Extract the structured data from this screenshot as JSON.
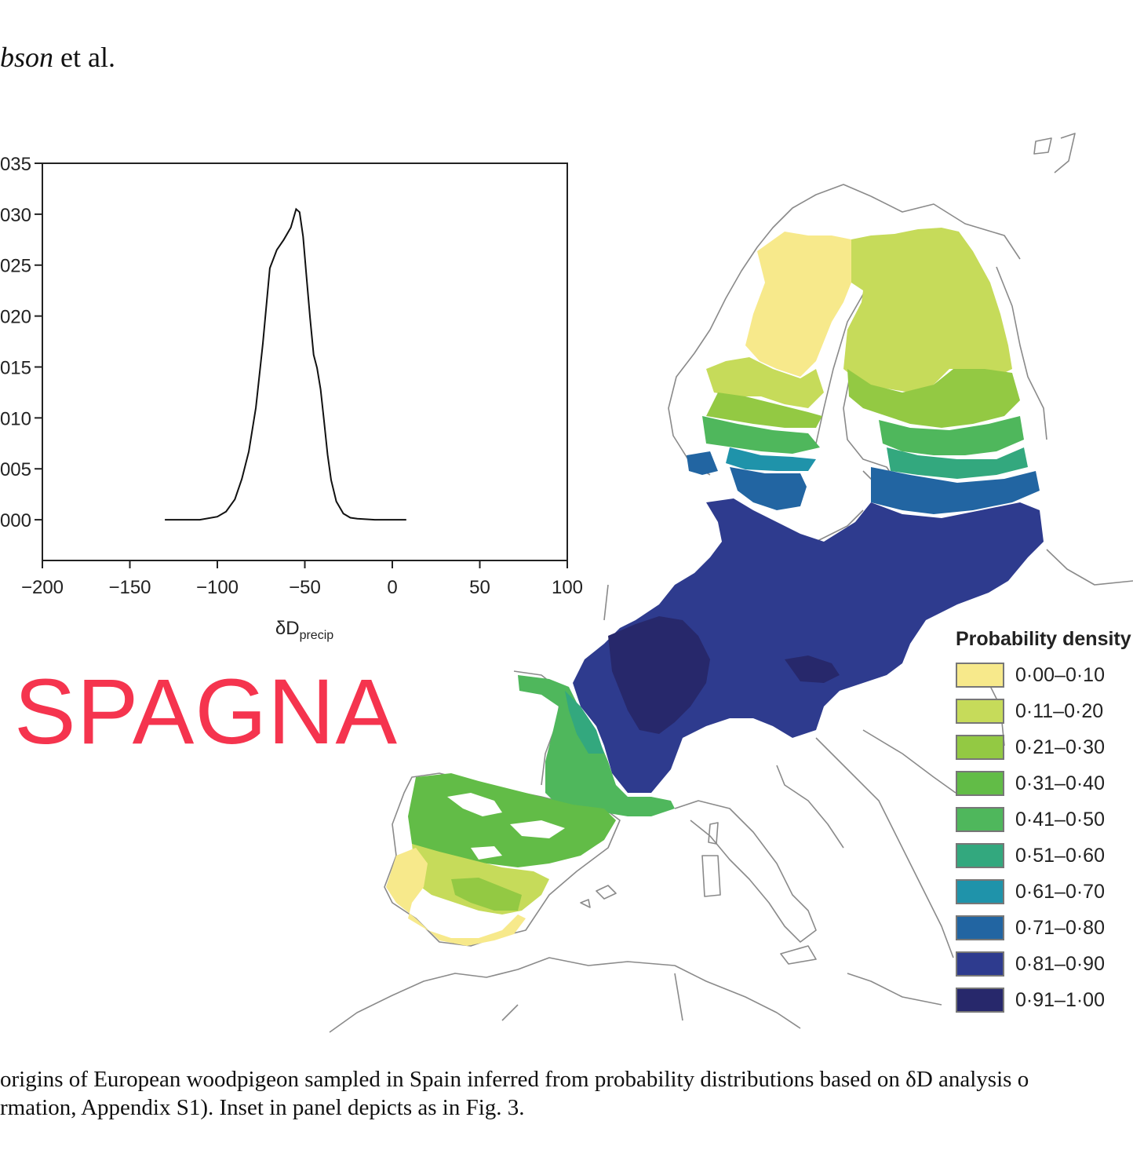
{
  "header": {
    "italic": "bson",
    "rest": " et al."
  },
  "inset": {
    "xlabel_main": "δD",
    "xlabel_sub": "precip",
    "x_ticks": [
      "−200",
      "−150",
      "−100",
      "−50",
      "0",
      "50",
      "100"
    ],
    "y_ticks": [
      "035",
      "030",
      "025",
      "020",
      "015",
      "010",
      "005",
      "000"
    ]
  },
  "chart_data": {
    "type": "line",
    "xlabel": "δDprecip",
    "xlim": [
      -200,
      100
    ],
    "ylim": [
      -0.004,
      0.035
    ],
    "x": [
      -130,
      -110,
      -100,
      -95,
      -90,
      -86,
      -82,
      -78,
      -74,
      -70,
      -66,
      -62,
      -58,
      -55,
      -53,
      -51,
      -49,
      -47,
      -45,
      -43,
      -41,
      -39,
      -37,
      -35,
      -32,
      -28,
      -24,
      -20,
      -10,
      8
    ],
    "y": [
      0.0,
      0.0,
      0.0003,
      0.0008,
      0.002,
      0.004,
      0.0067,
      0.011,
      0.0173,
      0.0247,
      0.0265,
      0.0275,
      0.0287,
      0.0305,
      0.0302,
      0.0278,
      0.0238,
      0.0198,
      0.0162,
      0.0149,
      0.0128,
      0.0097,
      0.0064,
      0.0039,
      0.0018,
      0.0006,
      0.0002,
      0.0001,
      0.0,
      0.0
    ]
  },
  "overlay_label": "SPAGNA",
  "legend": {
    "title": "Probability density",
    "items": [
      {
        "label": "0·00–0·10",
        "color": "#f7e98b"
      },
      {
        "label": "0·11–0·20",
        "color": "#c6db5a"
      },
      {
        "label": "0·21–0·30",
        "color": "#93c943"
      },
      {
        "label": "0·31–0·40",
        "color": "#62bc47"
      },
      {
        "label": "0·41–0·50",
        "color": "#4fb75c"
      },
      {
        "label": "0·51–0·60",
        "color": "#33a87e"
      },
      {
        "label": "0·61–0·70",
        "color": "#1f93aa"
      },
      {
        "label": "0·71–0·80",
        "color": "#2265a2"
      },
      {
        "label": "0·81–0·90",
        "color": "#2e3b8e"
      },
      {
        "label": "0·91–1·00",
        "color": "#27286b"
      }
    ]
  },
  "caption": {
    "line1": "origins of European woodpigeon sampled in Spain inferred from probability distributions based on δD analysis o",
    "line2": "rmation, Appendix S1). Inset in panel depicts as in Fig. 3."
  }
}
